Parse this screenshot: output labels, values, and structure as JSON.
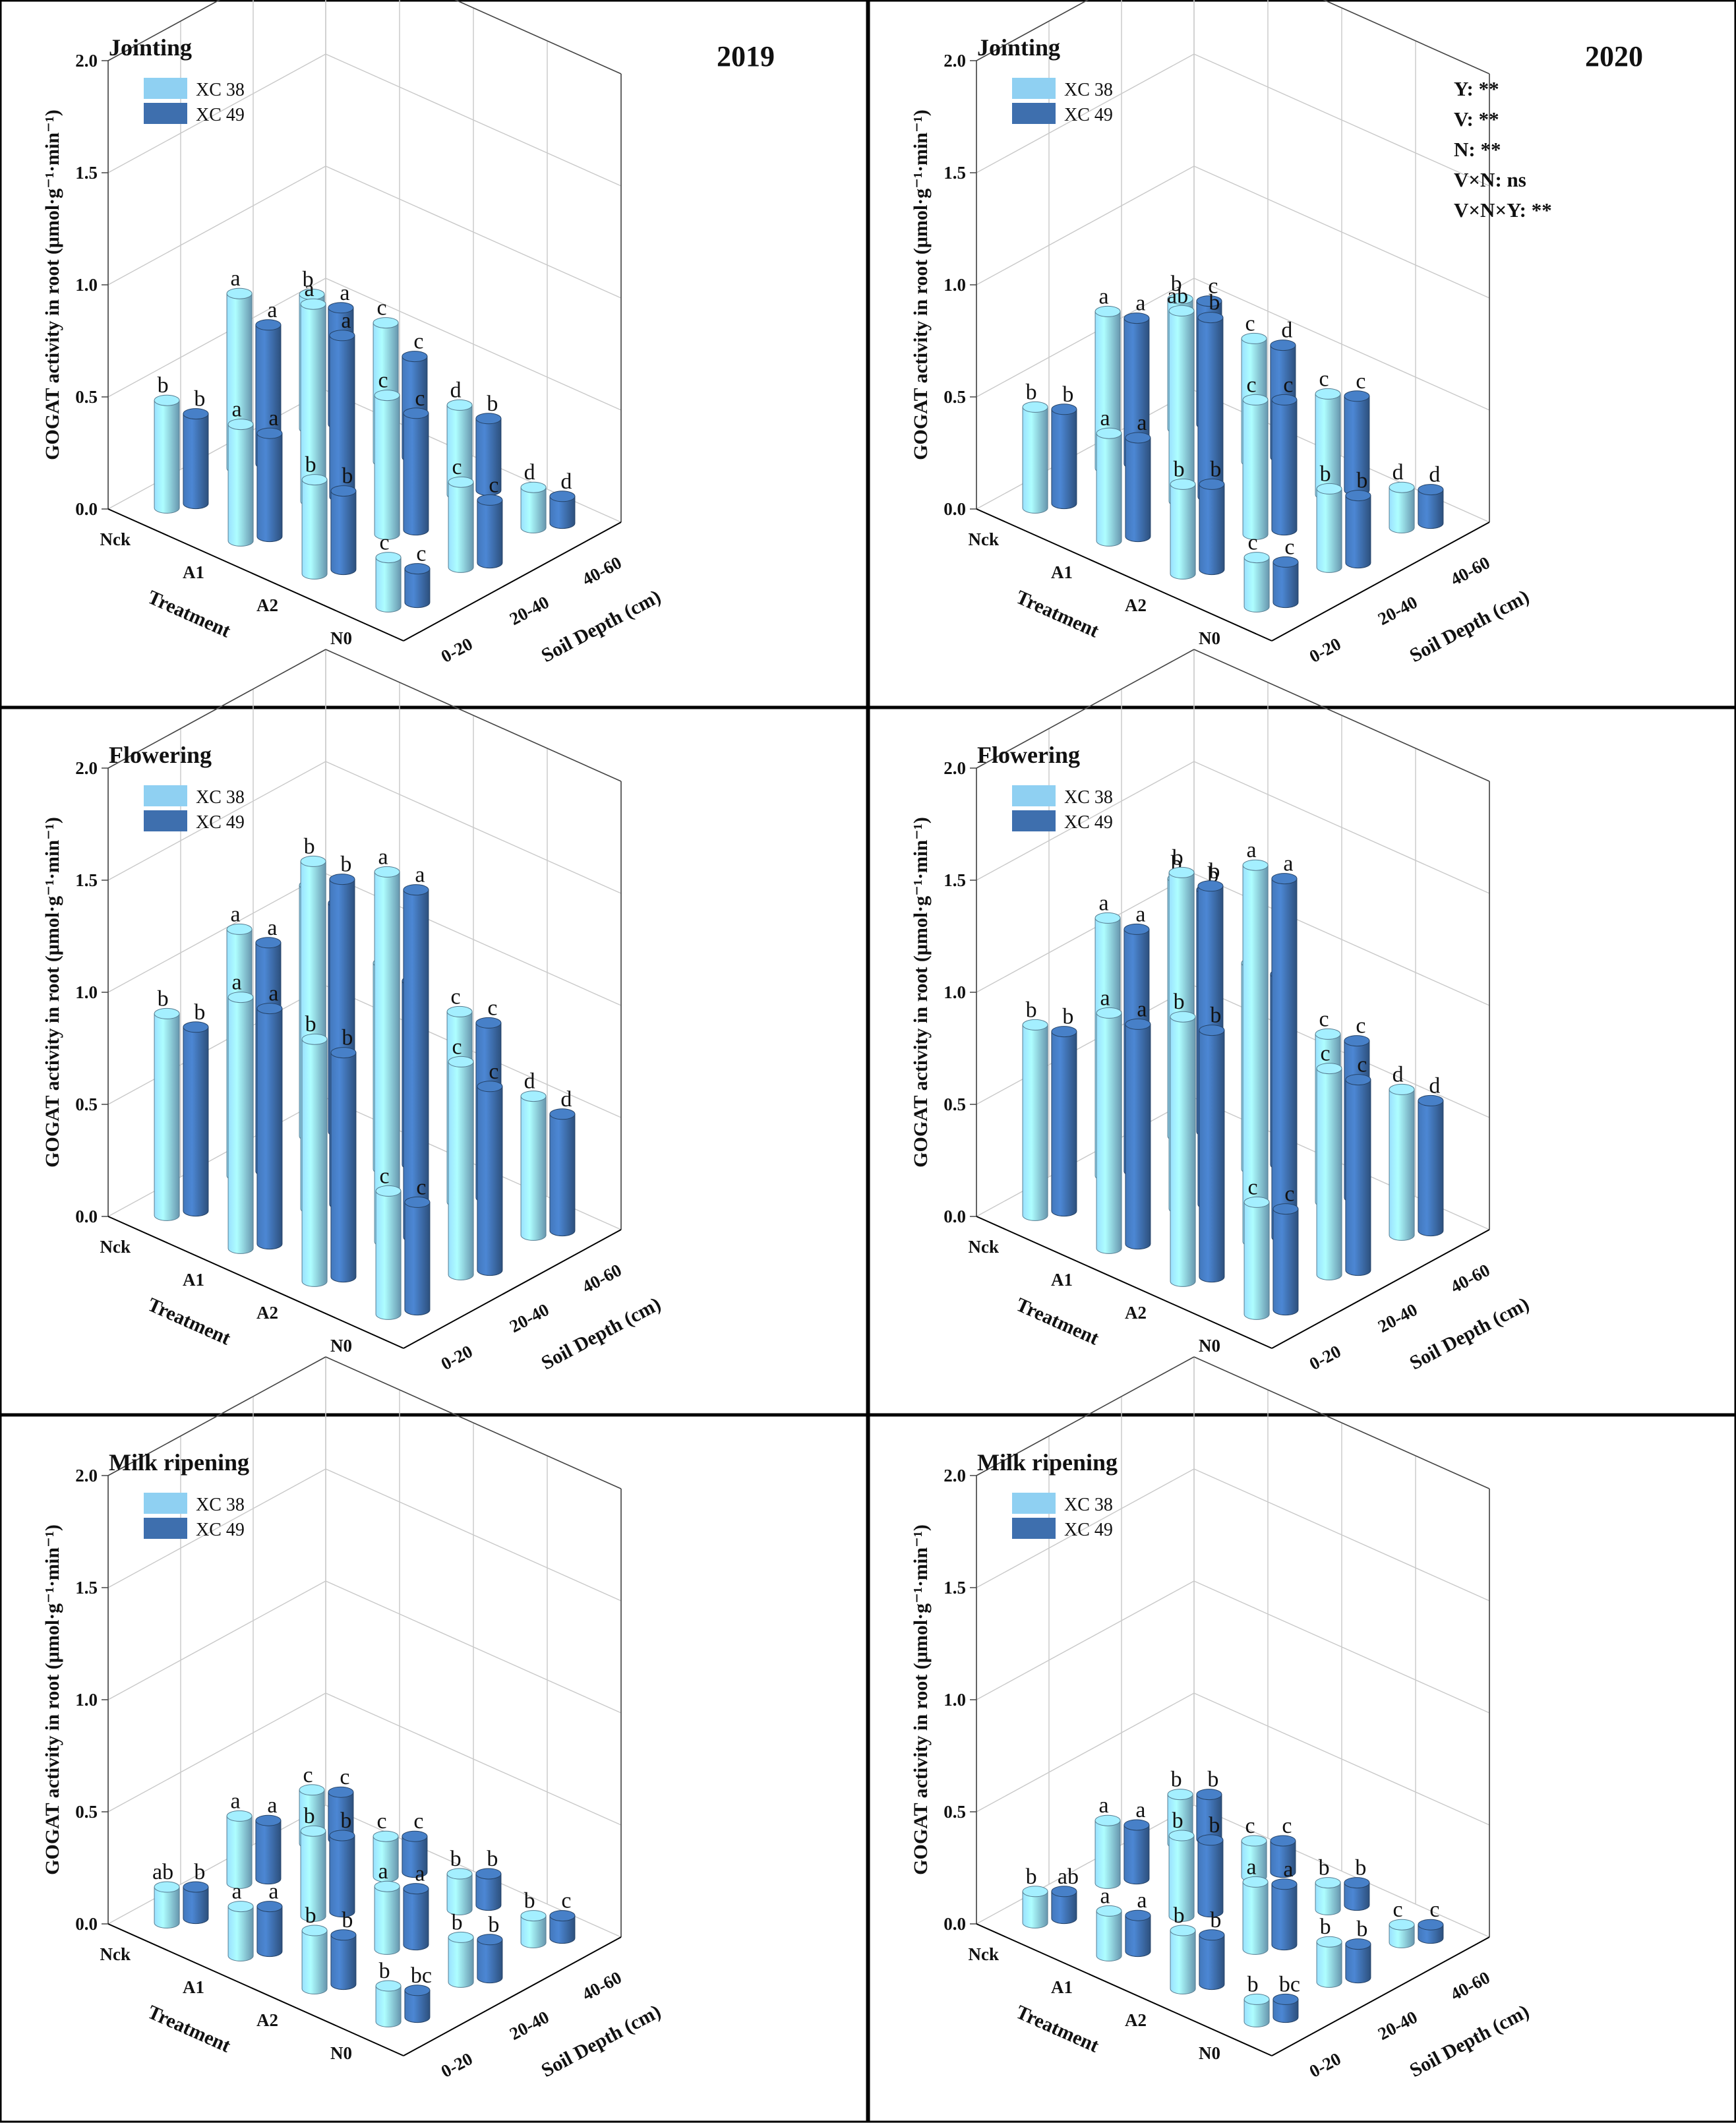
{
  "chart_data": [
    {
      "type": "bar3d",
      "panel": "top-left",
      "stage": "Jointing",
      "year": "2019",
      "ylabel": "GOGAT activity in root (μmol·g⁻¹·min⁻¹)",
      "zlabel": "Treatment",
      "xlabel": "Soil Depth (cm)",
      "ylim": [
        0,
        2.0
      ],
      "yticks": [
        "0.0",
        "0.5",
        "1.0",
        "1.5",
        "2.0"
      ],
      "treatments": [
        "Nck",
        "A1",
        "A2",
        "N0"
      ],
      "depths": [
        "0-20",
        "20-40",
        "40-60"
      ],
      "legend": [
        "XC 38",
        "XC 49"
      ],
      "series": [
        {
          "name": "XC 38",
          "color": "#8fd0f2",
          "values": [
            [
              0.48,
              0.78,
              0.6
            ],
            [
              0.52,
              0.88,
              0.62
            ],
            [
              0.42,
              0.62,
              0.4
            ],
            [
              0.22,
              0.38,
              0.18
            ]
          ],
          "labels": [
            [
              "b",
              "a",
              "b"
            ],
            [
              "a",
              "a",
              "c"
            ],
            [
              "b",
              "c",
              "d"
            ],
            [
              "c",
              "c",
              "d"
            ]
          ]
        },
        {
          "name": "XC 49",
          "color": "#3e6fae",
          "values": [
            [
              0.4,
              0.62,
              0.52
            ],
            [
              0.46,
              0.72,
              0.45
            ],
            [
              0.35,
              0.52,
              0.32
            ],
            [
              0.15,
              0.28,
              0.12
            ]
          ],
          "labels": [
            [
              "b",
              "a",
              "a"
            ],
            [
              "a",
              "a",
              "c"
            ],
            [
              "b",
              "c",
              "b"
            ],
            [
              "c",
              "c",
              "d"
            ]
          ]
        }
      ],
      "stats": []
    },
    {
      "type": "bar3d",
      "panel": "top-right",
      "stage": "Jointing",
      "year": "2020",
      "ylabel": "GOGAT activity in root (μmol·g⁻¹·min⁻¹)",
      "zlabel": "Treatment",
      "xlabel": "Soil Depth (cm)",
      "ylim": [
        0,
        2.0
      ],
      "yticks": [
        "0.0",
        "0.5",
        "1.0",
        "1.5",
        "2.0"
      ],
      "treatments": [
        "Nck",
        "A1",
        "A2",
        "N0"
      ],
      "depths": [
        "0-20",
        "20-40",
        "40-60"
      ],
      "legend": [
        "XC 38",
        "XC 49"
      ],
      "series": [
        {
          "name": "XC 38",
          "color": "#8fd0f2",
          "values": [
            [
              0.45,
              0.7,
              0.58
            ],
            [
              0.48,
              0.85,
              0.55
            ],
            [
              0.4,
              0.6,
              0.45
            ],
            [
              0.22,
              0.35,
              0.18
            ]
          ],
          "labels": [
            [
              "b",
              "a",
              "b"
            ],
            [
              "a",
              "ab",
              "c"
            ],
            [
              "b",
              "c",
              "c"
            ],
            [
              "c",
              "b",
              "d"
            ]
          ]
        },
        {
          "name": "XC 49",
          "color": "#3e6fae",
          "values": [
            [
              0.42,
              0.65,
              0.55
            ],
            [
              0.44,
              0.8,
              0.5
            ],
            [
              0.38,
              0.58,
              0.42
            ],
            [
              0.18,
              0.3,
              0.15
            ]
          ],
          "labels": [
            [
              "b",
              "a",
              "c"
            ],
            [
              "a",
              "b",
              "d"
            ],
            [
              "b",
              "c",
              "c"
            ],
            [
              "c",
              "b",
              "d"
            ]
          ]
        }
      ],
      "stats": [
        "Y: **",
        "V: **",
        "N: **",
        "V×N: ns",
        "V×N×Y: **"
      ]
    },
    {
      "type": "bar3d",
      "panel": "middle-left",
      "stage": "Flowering",
      "year": "",
      "ylabel": "GOGAT activity in root (μmol·g⁻¹·min⁻¹)",
      "zlabel": "Treatment",
      "xlabel": "Soil Depth (cm)",
      "ylim": [
        0,
        2.0
      ],
      "yticks": [
        "0.0",
        "0.5",
        "1.0",
        "1.5",
        "2.0"
      ],
      "treatments": [
        "Nck",
        "A1",
        "A2",
        "N0"
      ],
      "depths": [
        "0-20",
        "20-40",
        "40-60"
      ],
      "legend": [
        "XC 38",
        "XC 49"
      ],
      "series": [
        {
          "name": "XC 38",
          "color": "#8fd0f2",
          "values": [
            [
              0.9,
              1.1,
              1.12
            ],
            [
              1.12,
              1.55,
              0.92
            ],
            [
              1.08,
              1.65,
              0.85
            ],
            [
              0.55,
              0.95,
              0.62
            ]
          ],
          "labels": [
            [
              "b",
              "a",
              "b"
            ],
            [
              "a",
              "b",
              "c"
            ],
            [
              "b",
              "a",
              "c"
            ],
            [
              "c",
              "c",
              "d"
            ]
          ]
        },
        {
          "name": "XC 49",
          "color": "#3e6fae",
          "values": [
            [
              0.82,
              1.02,
              1.02
            ],
            [
              1.05,
              1.45,
              0.82
            ],
            [
              1.0,
              1.55,
              0.78
            ],
            [
              0.48,
              0.82,
              0.52
            ]
          ],
          "labels": [
            [
              "b",
              "a",
              "b"
            ],
            [
              "a",
              "b",
              "c"
            ],
            [
              "b",
              "a",
              "c"
            ],
            [
              "c",
              "c",
              "d"
            ]
          ]
        }
      ],
      "stats": []
    },
    {
      "type": "bar3d",
      "panel": "middle-right",
      "stage": "Flowering",
      "year": "",
      "ylabel": "GOGAT activity in root (μmol·g⁻¹·min⁻¹)",
      "zlabel": "Treatment",
      "xlabel": "Soil Depth (cm)",
      "ylim": [
        0,
        2.0
      ],
      "yticks": [
        "0.0",
        "0.5",
        "1.0",
        "1.5",
        "2.0"
      ],
      "treatments": [
        "Nck",
        "A1",
        "A2",
        "N0"
      ],
      "depths": [
        "0-20",
        "20-40",
        "40-60"
      ],
      "legend": [
        "XC 38",
        "XC 49"
      ],
      "series": [
        {
          "name": "XC 38",
          "color": "#8fd0f2",
          "values": [
            [
              0.85,
              1.15,
              1.15
            ],
            [
              1.05,
              1.5,
              0.92
            ],
            [
              1.18,
              1.68,
              0.75
            ],
            [
              0.5,
              0.92,
              0.65
            ]
          ],
          "labels": [
            [
              "b",
              "a",
              "b"
            ],
            [
              "a",
              "b",
              "c"
            ],
            [
              "b",
              "a",
              "c"
            ],
            [
              "c",
              "c",
              "d"
            ]
          ]
        },
        {
          "name": "XC 49",
          "color": "#3e6fae",
          "values": [
            [
              0.8,
              1.08,
              1.08
            ],
            [
              0.98,
              1.42,
              0.85
            ],
            [
              1.1,
              1.6,
              0.7
            ],
            [
              0.45,
              0.85,
              0.58
            ]
          ],
          "labels": [
            [
              "b",
              "a",
              "b"
            ],
            [
              "a",
              "b",
              "c"
            ],
            [
              "b",
              "a",
              "c"
            ],
            [
              "c",
              "c",
              "d"
            ]
          ]
        }
      ],
      "stats": []
    },
    {
      "type": "bar3d",
      "panel": "bottom-left",
      "stage": "Milk ripening",
      "year": "",
      "ylabel": "GOGAT activity in root (μmol·g⁻¹·min⁻¹)",
      "zlabel": "Treatment",
      "xlabel": "Soil Depth (cm)",
      "ylim": [
        0,
        2.0
      ],
      "yticks": [
        "0.0",
        "0.5",
        "1.0",
        "1.5",
        "2.0"
      ],
      "treatments": [
        "Nck",
        "A1",
        "A2",
        "N0"
      ],
      "depths": [
        "0-20",
        "20-40",
        "40-60"
      ],
      "legend": [
        "XC 38",
        "XC 49"
      ],
      "series": [
        {
          "name": "XC 38",
          "color": "#8fd0f2",
          "values": [
            [
              0.16,
              0.3,
              0.24
            ],
            [
              0.22,
              0.38,
              0.18
            ],
            [
              0.26,
              0.28,
              0.16
            ],
            [
              0.16,
              0.2,
              0.12
            ]
          ],
          "labels": [
            [
              "ab",
              "a",
              "c"
            ],
            [
              "a",
              "b",
              "c"
            ],
            [
              "b",
              "a",
              "b"
            ],
            [
              "b",
              "b",
              "b"
            ]
          ]
        },
        {
          "name": "XC 49",
          "color": "#3e6fae",
          "values": [
            [
              0.14,
              0.26,
              0.21
            ],
            [
              0.2,
              0.34,
              0.16
            ],
            [
              0.22,
              0.25,
              0.14
            ],
            [
              0.12,
              0.17,
              0.1
            ]
          ],
          "labels": [
            [
              "b",
              "a",
              "c"
            ],
            [
              "a",
              "b",
              "c"
            ],
            [
              "b",
              "a",
              "b"
            ],
            [
              "bc",
              "b",
              "c"
            ]
          ]
        }
      ],
      "stats": []
    },
    {
      "type": "bar3d",
      "panel": "bottom-right",
      "stage": "Milk ripening",
      "year": "",
      "ylabel": "GOGAT activity in root (μmol·g⁻¹·min⁻¹)",
      "zlabel": "Treatment",
      "xlabel": "Soil Depth (cm)",
      "ylim": [
        0,
        2.0
      ],
      "yticks": [
        "0.0",
        "0.5",
        "1.0",
        "1.5",
        "2.0"
      ],
      "treatments": [
        "Nck",
        "A1",
        "A2",
        "N0"
      ],
      "depths": [
        "0-20",
        "20-40",
        "40-60"
      ],
      "legend": [
        "XC 38",
        "XC 49"
      ],
      "series": [
        {
          "name": "XC 38",
          "color": "#8fd0f2",
          "values": [
            [
              0.14,
              0.28,
              0.22
            ],
            [
              0.2,
              0.36,
              0.16
            ],
            [
              0.26,
              0.3,
              0.12
            ],
            [
              0.1,
              0.18,
              0.08
            ]
          ],
          "labels": [
            [
              "b",
              "a",
              "b"
            ],
            [
              "a",
              "b",
              "c"
            ],
            [
              "b",
              "a",
              "b"
            ],
            [
              "b",
              "b",
              "c"
            ]
          ]
        },
        {
          "name": "XC 49",
          "color": "#3e6fae",
          "values": [
            [
              0.12,
              0.24,
              0.2
            ],
            [
              0.16,
              0.32,
              0.14
            ],
            [
              0.22,
              0.27,
              0.1
            ],
            [
              0.08,
              0.15,
              0.06
            ]
          ],
          "labels": [
            [
              "ab",
              "a",
              "b"
            ],
            [
              "a",
              "b",
              "c"
            ],
            [
              "b",
              "a",
              "b"
            ],
            [
              "bc",
              "b",
              "c"
            ]
          ]
        }
      ],
      "stats": []
    }
  ]
}
